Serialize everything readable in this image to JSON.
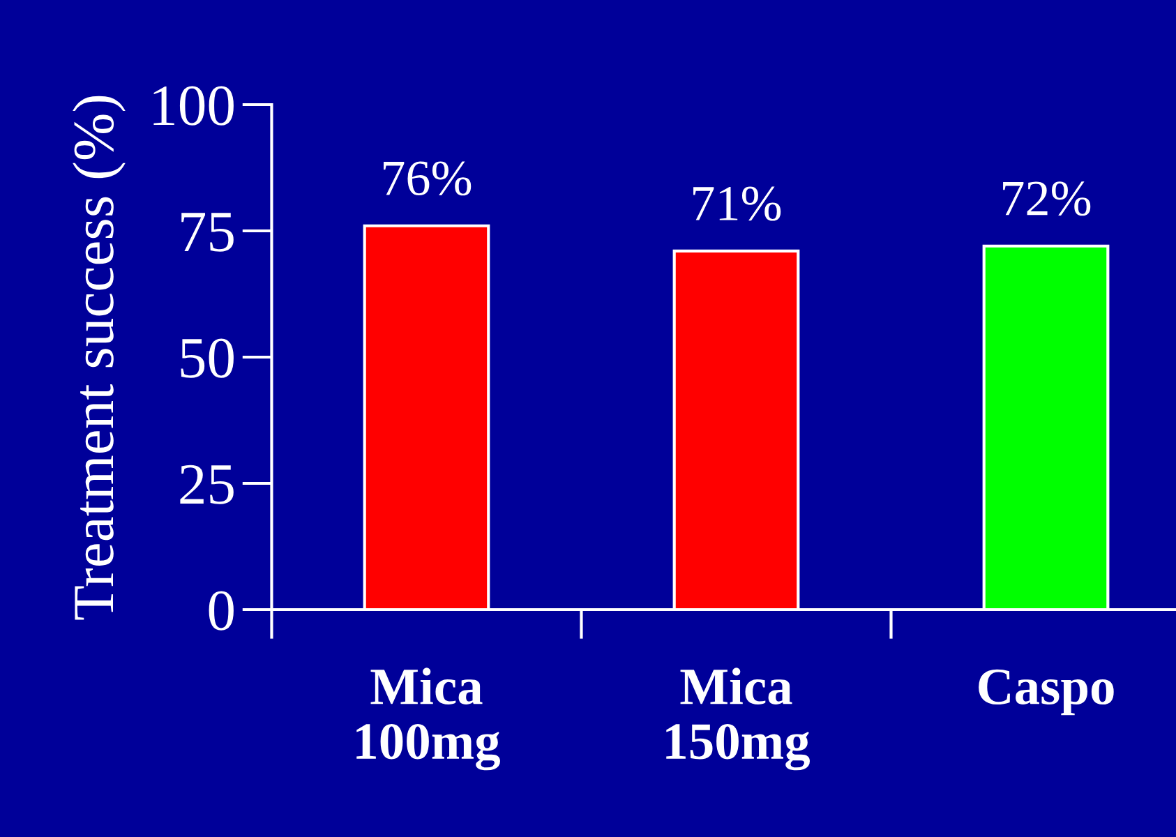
{
  "chart_data": {
    "type": "bar",
    "ylabel": "Treatment success (%)",
    "categories": [
      "Mica\n100mg",
      "Mica\n150mg",
      "Caspo"
    ],
    "values": [
      76,
      71,
      72
    ],
    "colors": [
      "#ff0000",
      "#ff0000",
      "#00ff00"
    ],
    "value_labels": [
      "76%",
      "71%",
      "72%"
    ],
    "ylim": [
      0,
      100
    ],
    "yticks": [
      0,
      25,
      50,
      75,
      100
    ],
    "grid": false,
    "legend": false
  }
}
